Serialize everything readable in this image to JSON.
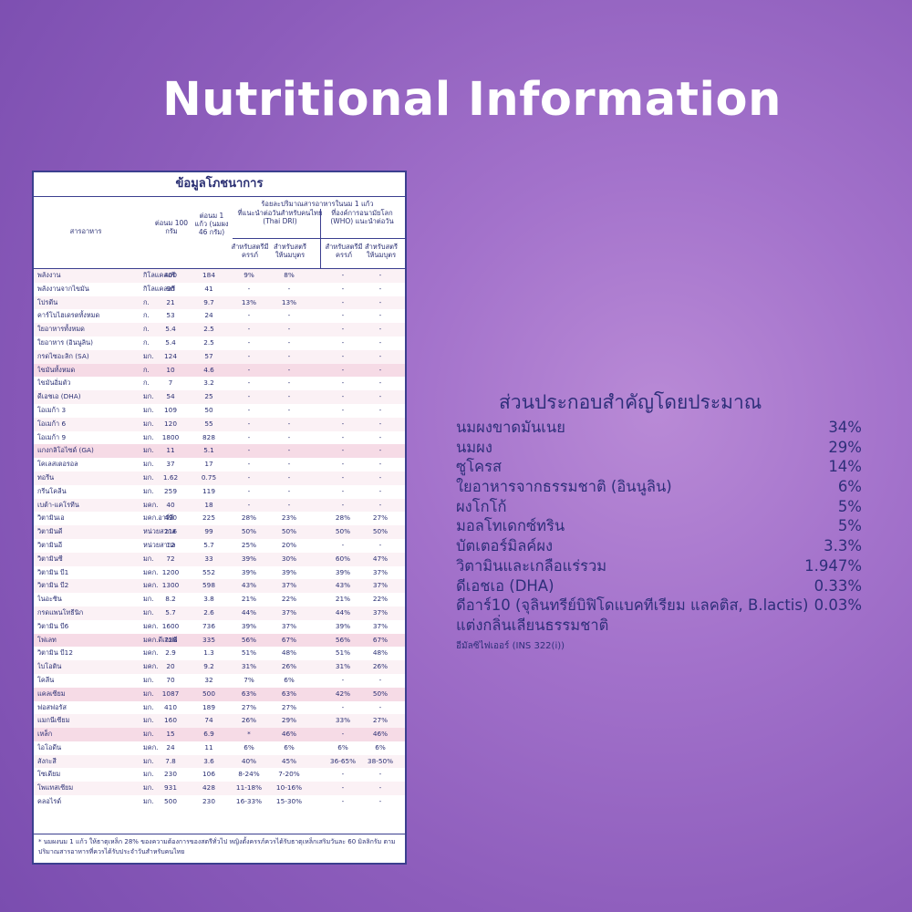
{
  "title": "Nutritional Information",
  "panel": {
    "title": "ข้อมูลโภชนาการ",
    "headers": {
      "nutrient": "สารอาหาร",
      "per100": "ต่อนม 100 กรัม",
      "perServing": "ต่อนม 1 แก้ว (นมผง 46 กรัม)",
      "pctGroup": "ร้อยละปริมาณสารอาหารในนม 1 แก้ว",
      "thaiGroup": "ที่แนะนำต่อวันสำหรับคนไทย (Thai DRI)",
      "whoGroup": "ที่องค์การอนามัยโลก (WHO) แนะนำต่อวัน",
      "pregnant": "สำหรับสตรีมีครรภ์",
      "lactating": "สำหรับสตรีให้นมบุตร"
    },
    "rows": [
      {
        "n": "พลังงาน",
        "u": "กิโลแคลอรี",
        "a": "400",
        "b": "184",
        "c": "9%",
        "d": "8%",
        "e": "-",
        "f": "-",
        "s": "alt"
      },
      {
        "n": "  พลังงานจากไขมัน",
        "u": "กิโลแคลอรี",
        "a": "90",
        "b": "41",
        "c": "-",
        "d": "-",
        "e": "-",
        "f": "-",
        "s": ""
      },
      {
        "n": "โปรตีน",
        "u": "ก.",
        "a": "21",
        "b": "9.7",
        "c": "13%",
        "d": "13%",
        "e": "-",
        "f": "-",
        "s": "alt"
      },
      {
        "n": "คาร์โบไฮเดรตทั้งหมด",
        "u": "ก.",
        "a": "53",
        "b": "24",
        "c": "-",
        "d": "-",
        "e": "-",
        "f": "-",
        "s": ""
      },
      {
        "n": "ใยอาหารทั้งหมด",
        "u": "ก.",
        "a": "5.4",
        "b": "2.5",
        "c": "-",
        "d": "-",
        "e": "-",
        "f": "-",
        "s": "alt"
      },
      {
        "n": "ใยอาหาร (อินนูลิน)",
        "u": "ก.",
        "a": "5.4",
        "b": "2.5",
        "c": "-",
        "d": "-",
        "e": "-",
        "f": "-",
        "s": ""
      },
      {
        "n": "กรดไซอะลิก (SA)",
        "u": "มก.",
        "a": "124",
        "b": "57",
        "c": "-",
        "d": "-",
        "e": "-",
        "f": "-",
        "s": "alt"
      },
      {
        "n": "ไขมันทั้งหมด",
        "u": "ก.",
        "a": "10",
        "b": "4.6",
        "c": "-",
        "d": "-",
        "e": "-",
        "f": "-",
        "s": "pink"
      },
      {
        "n": "  ไขมันอิ่มตัว",
        "u": "ก.",
        "a": "7",
        "b": "3.2",
        "c": "-",
        "d": "-",
        "e": "-",
        "f": "-",
        "s": ""
      },
      {
        "n": "  ดีเอชเอ (DHA)",
        "u": "มก.",
        "a": "54",
        "b": "25",
        "c": "-",
        "d": "-",
        "e": "-",
        "f": "-",
        "s": "alt"
      },
      {
        "n": "  โอเมก้า 3",
        "u": "มก.",
        "a": "109",
        "b": "50",
        "c": "-",
        "d": "-",
        "e": "-",
        "f": "-",
        "s": ""
      },
      {
        "n": "  โอเมก้า 6",
        "u": "มก.",
        "a": "120",
        "b": "55",
        "c": "-",
        "d": "-",
        "e": "-",
        "f": "-",
        "s": "alt"
      },
      {
        "n": "  โอเมก้า 9",
        "u": "มก.",
        "a": "1800",
        "b": "828",
        "c": "-",
        "d": "-",
        "e": "-",
        "f": "-",
        "s": ""
      },
      {
        "n": "  แกงกลิโอไซด์ (GA)",
        "u": "มก.",
        "a": "11",
        "b": "5.1",
        "c": "-",
        "d": "-",
        "e": "-",
        "f": "-",
        "s": "pink"
      },
      {
        "n": "โคเลสเตอรอล",
        "u": "มก.",
        "a": "37",
        "b": "17",
        "c": "-",
        "d": "-",
        "e": "-",
        "f": "-",
        "s": ""
      },
      {
        "n": "ทอรีน",
        "u": "มก.",
        "a": "1.62",
        "b": "0.75",
        "c": "-",
        "d": "-",
        "e": "-",
        "f": "-",
        "s": "alt"
      },
      {
        "n": "กรีนโคลีน",
        "u": "มก.",
        "a": "259",
        "b": "119",
        "c": "-",
        "d": "-",
        "e": "-",
        "f": "-",
        "s": ""
      },
      {
        "n": "เบต้า-แคโรทีน",
        "u": "มคก.",
        "a": "40",
        "b": "18",
        "c": "-",
        "d": "-",
        "e": "-",
        "f": "-",
        "s": "alt"
      },
      {
        "n": "วิตามินเอ",
        "u": "มคก.อาร์อี",
        "a": "490",
        "b": "225",
        "c": "28%",
        "d": "23%",
        "e": "28%",
        "f": "27%",
        "s": ""
      },
      {
        "n": "วิตามินดี",
        "u": "หน่วยสากล",
        "a": "216",
        "b": "99",
        "c": "50%",
        "d": "50%",
        "e": "50%",
        "f": "50%",
        "s": "alt"
      },
      {
        "n": "วิตามินอี",
        "u": "หน่วยสากล",
        "a": "12",
        "b": "5.7",
        "c": "25%",
        "d": "20%",
        "e": "-",
        "f": "-",
        "s": ""
      },
      {
        "n": "วิตามินซี",
        "u": "มก.",
        "a": "72",
        "b": "33",
        "c": "39%",
        "d": "30%",
        "e": "60%",
        "f": "47%",
        "s": "alt"
      },
      {
        "n": "วิตามิน บี1",
        "u": "มคก.",
        "a": "1200",
        "b": "552",
        "c": "39%",
        "d": "39%",
        "e": "39%",
        "f": "37%",
        "s": ""
      },
      {
        "n": "วิตามิน บี2",
        "u": "มคก.",
        "a": "1300",
        "b": "598",
        "c": "43%",
        "d": "37%",
        "e": "43%",
        "f": "37%",
        "s": "alt"
      },
      {
        "n": "ไนอะซิน",
        "u": "มก.",
        "a": "8.2",
        "b": "3.8",
        "c": "21%",
        "d": "22%",
        "e": "21%",
        "f": "22%",
        "s": ""
      },
      {
        "n": "กรดแพนโทธีนิก",
        "u": "มก.",
        "a": "5.7",
        "b": "2.6",
        "c": "44%",
        "d": "37%",
        "e": "44%",
        "f": "37%",
        "s": "alt"
      },
      {
        "n": "วิตามิน บี6",
        "u": "มคก.",
        "a": "1600",
        "b": "736",
        "c": "39%",
        "d": "37%",
        "e": "39%",
        "f": "37%",
        "s": ""
      },
      {
        "n": "โฟเลท",
        "u": "มคก.ดีเอฟอี",
        "a": "728",
        "b": "335",
        "c": "56%",
        "d": "67%",
        "e": "56%",
        "f": "67%",
        "s": "pink"
      },
      {
        "n": "วิตามิน บี12",
        "u": "มคก.",
        "a": "2.9",
        "b": "1.3",
        "c": "51%",
        "d": "48%",
        "e": "51%",
        "f": "48%",
        "s": ""
      },
      {
        "n": "ไบโอติน",
        "u": "มคก.",
        "a": "20",
        "b": "9.2",
        "c": "31%",
        "d": "26%",
        "e": "31%",
        "f": "26%",
        "s": "alt"
      },
      {
        "n": "โคลีน",
        "u": "มก.",
        "a": "70",
        "b": "32",
        "c": "7%",
        "d": "6%",
        "e": "-",
        "f": "-",
        "s": ""
      },
      {
        "n": "แคลเซียม",
        "u": "มก.",
        "a": "1087",
        "b": "500",
        "c": "63%",
        "d": "63%",
        "e": "42%",
        "f": "50%",
        "s": "pink"
      },
      {
        "n": "ฟอสฟอรัส",
        "u": "มก.",
        "a": "410",
        "b": "189",
        "c": "27%",
        "d": "27%",
        "e": "-",
        "f": "-",
        "s": ""
      },
      {
        "n": "แมกนีเซียม",
        "u": "มก.",
        "a": "160",
        "b": "74",
        "c": "26%",
        "d": "29%",
        "e": "33%",
        "f": "27%",
        "s": "alt"
      },
      {
        "n": "เหล็ก",
        "u": "มก.",
        "a": "15",
        "b": "6.9",
        "c": "*",
        "d": "46%",
        "e": "-",
        "f": "46%",
        "s": "pink"
      },
      {
        "n": "ไอโอดีน",
        "u": "มคก.",
        "a": "24",
        "b": "11",
        "c": "6%",
        "d": "6%",
        "e": "6%",
        "f": "6%",
        "s": ""
      },
      {
        "n": "สังกะสี",
        "u": "มก.",
        "a": "7.8",
        "b": "3.6",
        "c": "40%",
        "d": "45%",
        "e": "36-65%",
        "f": "38-50%",
        "s": "alt"
      },
      {
        "n": "โซเดียม",
        "u": "มก.",
        "a": "230",
        "b": "106",
        "c": "8-24%",
        "d": "7-20%",
        "e": "-",
        "f": "-",
        "s": ""
      },
      {
        "n": "โพแทสเซียม",
        "u": "มก.",
        "a": "931",
        "b": "428",
        "c": "11-18%",
        "d": "10-16%",
        "e": "-",
        "f": "-",
        "s": "alt"
      },
      {
        "n": "คลอไรด์",
        "u": "มก.",
        "a": "500",
        "b": "230",
        "c": "16-33%",
        "d": "15-30%",
        "e": "-",
        "f": "-",
        "s": ""
      }
    ],
    "footnote": "* นมผงนม 1 แก้ว ให้ธาตุเหล็ก 28% ของความต้องการของสตรีทั่วไป หญิงตั้งครรภ์ควรได้รับธาตุเหล็กเสริมวันละ 60 มิลลิกรัม ตามปริมาณสารอาหารที่ควรได้รับประจำวันสำหรับคนไทย"
  },
  "ingredients": {
    "heading": "ส่วนประกอบสำคัญโดยประมาณ",
    "items": [
      {
        "name": "นมผงขาดมันเนย",
        "pct": "34%"
      },
      {
        "name": "นมผง",
        "pct": "29%"
      },
      {
        "name": "ซูโครส",
        "pct": "14%"
      },
      {
        "name": "ใยอาหารจากธรรมชาติ (อินนูลิน)",
        "pct": "6%"
      },
      {
        "name": "ผงโกโก้",
        "pct": "5%"
      },
      {
        "name": "มอลโทเดกซ์ทริน",
        "pct": "5%"
      },
      {
        "name": "บัตเตอร์มิลค์ผง",
        "pct": "3.3%"
      },
      {
        "name": "วิตามินและเกลือแร่รวม",
        "pct": "1.947%"
      },
      {
        "name": "ดีเอชเอ (DHA)",
        "pct": "0.33%"
      },
      {
        "name": "ดีอาร์10 (จุลินทรีย์บิฟิโดแบคทีเรียม แลคติส, B.lactis)",
        "pct": "0.03%"
      },
      {
        "name": "แต่งกลิ่นเลียนธรรมชาติ",
        "pct": ""
      }
    ],
    "note": "อีมัลซิไฟเออร์ (INS 322(i))"
  }
}
